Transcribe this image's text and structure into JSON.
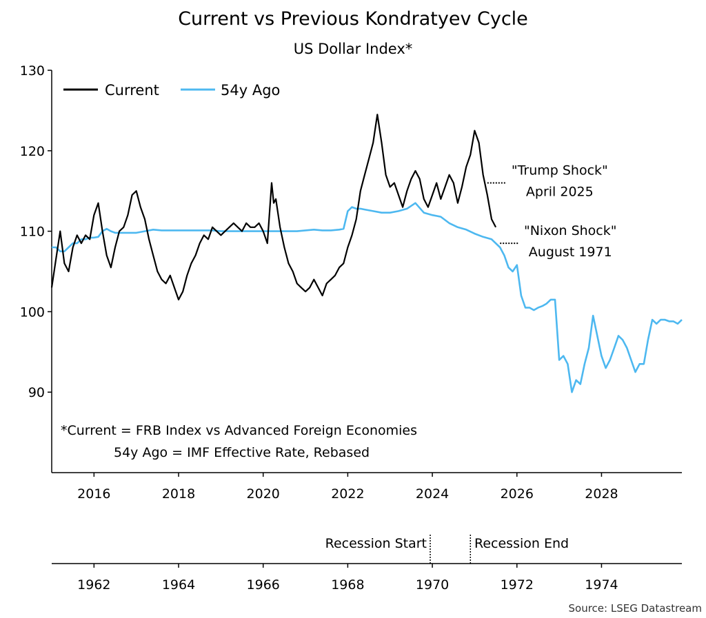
{
  "chart_data": {
    "type": "line",
    "title": "Current vs Previous Kondratyev Cycle",
    "subtitle": "US Dollar Index*",
    "ylim": [
      80,
      130
    ],
    "y_ticks": [
      90,
      100,
      110,
      120,
      130
    ],
    "xlim": [
      2015.0,
      2029.9
    ],
    "x_ticks": [
      "2016",
      "2018",
      "2020",
      "2022",
      "2024",
      "2026",
      "2028"
    ],
    "x_ticks_secondary": [
      "1962",
      "1964",
      "1966",
      "1968",
      "1970",
      "1972",
      "1974"
    ],
    "year_offset": 54,
    "legend": {
      "placement": "top-left",
      "entries": [
        "Current",
        "54y Ago"
      ]
    },
    "colors": {
      "current": "#000000",
      "ago": "#4db8f0"
    },
    "series": [
      {
        "name": "Current",
        "x": [
          2015.0,
          2015.1,
          2015.2,
          2015.3,
          2015.4,
          2015.5,
          2015.6,
          2015.7,
          2015.8,
          2015.9,
          2016.0,
          2016.1,
          2016.2,
          2016.3,
          2016.4,
          2016.5,
          2016.6,
          2016.7,
          2016.8,
          2016.9,
          2017.0,
          2017.1,
          2017.2,
          2017.3,
          2017.4,
          2017.5,
          2017.6,
          2017.7,
          2017.8,
          2017.9,
          2018.0,
          2018.1,
          2018.2,
          2018.3,
          2018.4,
          2018.5,
          2018.6,
          2018.7,
          2018.8,
          2018.9,
          2019.0,
          2019.1,
          2019.2,
          2019.3,
          2019.4,
          2019.5,
          2019.6,
          2019.7,
          2019.8,
          2019.9,
          2020.0,
          2020.1,
          2020.2,
          2020.25,
          2020.3,
          2020.4,
          2020.5,
          2020.6,
          2020.7,
          2020.8,
          2020.9,
          2021.0,
          2021.1,
          2021.2,
          2021.3,
          2021.4,
          2021.5,
          2021.6,
          2021.7,
          2021.8,
          2021.9,
          2022.0,
          2022.1,
          2022.2,
          2022.3,
          2022.4,
          2022.5,
          2022.6,
          2022.7,
          2022.8,
          2022.9,
          2023.0,
          2023.1,
          2023.2,
          2023.3,
          2023.4,
          2023.5,
          2023.6,
          2023.7,
          2023.8,
          2023.9,
          2024.0,
          2024.1,
          2024.2,
          2024.3,
          2024.4,
          2024.5,
          2024.6,
          2024.7,
          2024.8,
          2024.9,
          2025.0,
          2025.1,
          2025.2,
          2025.3,
          2025.4,
          2025.5
        ],
        "y": [
          103.0,
          106.5,
          110.0,
          106.0,
          105.0,
          108.0,
          109.5,
          108.5,
          109.5,
          109.0,
          112.0,
          113.5,
          110.0,
          107.0,
          105.5,
          108.0,
          110.0,
          110.5,
          112.0,
          114.5,
          115.0,
          113.0,
          111.5,
          109.0,
          107.0,
          105.0,
          104.0,
          103.5,
          104.5,
          103.0,
          101.5,
          102.5,
          104.5,
          106.0,
          107.0,
          108.5,
          109.5,
          109.0,
          110.5,
          110.0,
          109.5,
          110.0,
          110.5,
          111.0,
          110.5,
          110.0,
          111.0,
          110.5,
          110.5,
          111.0,
          110.0,
          108.5,
          116.0,
          113.5,
          114.0,
          110.5,
          108.0,
          106.0,
          105.0,
          103.5,
          103.0,
          102.5,
          103.0,
          104.0,
          103.0,
          102.0,
          103.5,
          104.0,
          104.5,
          105.5,
          106.0,
          108.0,
          109.5,
          111.5,
          115.0,
          117.0,
          119.0,
          121.0,
          124.5,
          121.0,
          117.0,
          115.5,
          116.0,
          114.5,
          113.0,
          115.0,
          116.5,
          117.5,
          116.5,
          114.0,
          113.0,
          114.5,
          116.0,
          114.0,
          115.5,
          117.0,
          116.0,
          113.5,
          115.5,
          118.0,
          119.5,
          122.5,
          121.0,
          117.0,
          114.5,
          111.5,
          110.5
        ]
      },
      {
        "name": "54y Ago",
        "x": [
          2015.0,
          2015.1,
          2015.2,
          2015.3,
          2015.4,
          2015.5,
          2015.6,
          2015.7,
          2015.8,
          2015.9,
          2016.0,
          2016.1,
          2016.2,
          2016.3,
          2016.4,
          2016.5,
          2016.6,
          2016.7,
          2016.8,
          2016.9,
          2017.0,
          2017.2,
          2017.4,
          2017.6,
          2017.8,
          2018.0,
          2018.2,
          2018.4,
          2018.6,
          2018.8,
          2019.0,
          2019.2,
          2019.4,
          2019.6,
          2019.8,
          2020.0,
          2020.2,
          2020.4,
          2020.6,
          2020.8,
          2021.0,
          2021.2,
          2021.4,
          2021.6,
          2021.8,
          2021.9,
          2022.0,
          2022.1,
          2022.2,
          2022.3,
          2022.4,
          2022.6,
          2022.8,
          2023.0,
          2023.2,
          2023.4,
          2023.6,
          2023.8,
          2024.0,
          2024.2,
          2024.4,
          2024.6,
          2024.8,
          2025.0,
          2025.2,
          2025.4,
          2025.6,
          2025.7,
          2025.8,
          2025.9,
          2026.0,
          2026.1,
          2026.2,
          2026.3,
          2026.4,
          2026.5,
          2026.6,
          2026.7,
          2026.8,
          2026.9,
          2027.0,
          2027.1,
          2027.2,
          2027.3,
          2027.4,
          2027.5,
          2027.6,
          2027.7,
          2027.8,
          2027.9,
          2028.0,
          2028.1,
          2028.2,
          2028.3,
          2028.4,
          2028.5,
          2028.6,
          2028.7,
          2028.8,
          2028.9,
          2029.0,
          2029.1,
          2029.2,
          2029.3,
          2029.4,
          2029.5,
          2029.6,
          2029.7,
          2029.8,
          2029.9
        ],
        "y": [
          108.0,
          108.0,
          107.5,
          107.5,
          108.0,
          108.5,
          108.5,
          109.0,
          109.0,
          109.2,
          109.2,
          109.3,
          110.0,
          110.3,
          110.0,
          109.8,
          109.8,
          109.8,
          109.8,
          109.8,
          109.8,
          110.0,
          110.2,
          110.1,
          110.1,
          110.1,
          110.1,
          110.1,
          110.1,
          110.1,
          110.0,
          110.0,
          110.0,
          110.0,
          110.0,
          110.0,
          110.0,
          110.0,
          110.0,
          110.0,
          110.1,
          110.2,
          110.1,
          110.1,
          110.2,
          110.3,
          112.5,
          113.0,
          112.8,
          112.8,
          112.7,
          112.5,
          112.3,
          112.3,
          112.5,
          112.8,
          113.5,
          112.3,
          112.0,
          111.8,
          111.0,
          110.5,
          110.2,
          109.7,
          109.3,
          109.0,
          108.0,
          107.0,
          105.5,
          105.0,
          105.8,
          102.0,
          100.5,
          100.5,
          100.2,
          100.5,
          100.7,
          101.0,
          101.5,
          101.5,
          94.0,
          94.5,
          93.5,
          90.0,
          91.5,
          91.0,
          93.5,
          95.5,
          99.5,
          97.0,
          94.5,
          93.0,
          94.0,
          95.5,
          97.0,
          96.5,
          95.5,
          94.0,
          92.5,
          93.5,
          93.5,
          96.5,
          99.0,
          98.5,
          99.0,
          99.0,
          98.8,
          98.8,
          98.5,
          99.0
        ]
      }
    ],
    "annotations": [
      {
        "lines": [
          "\"Trump Shock\"",
          "April 2025"
        ],
        "x": 2025.3,
        "y": 116.0
      },
      {
        "lines": [
          "\"Nixon Shock\"",
          "August 1971"
        ],
        "x": 2025.6,
        "y": 108.5
      }
    ],
    "recession": {
      "start_label": "Recession Start",
      "end_label": "Recession End",
      "start": 1969.95,
      "end": 1970.9
    },
    "notes": [
      "*Current = FRB Index vs Advanced Foreign Economies",
      "54y Ago = IMF Effective Rate, Rebased"
    ],
    "source": "Source: LSEG Datastream"
  }
}
